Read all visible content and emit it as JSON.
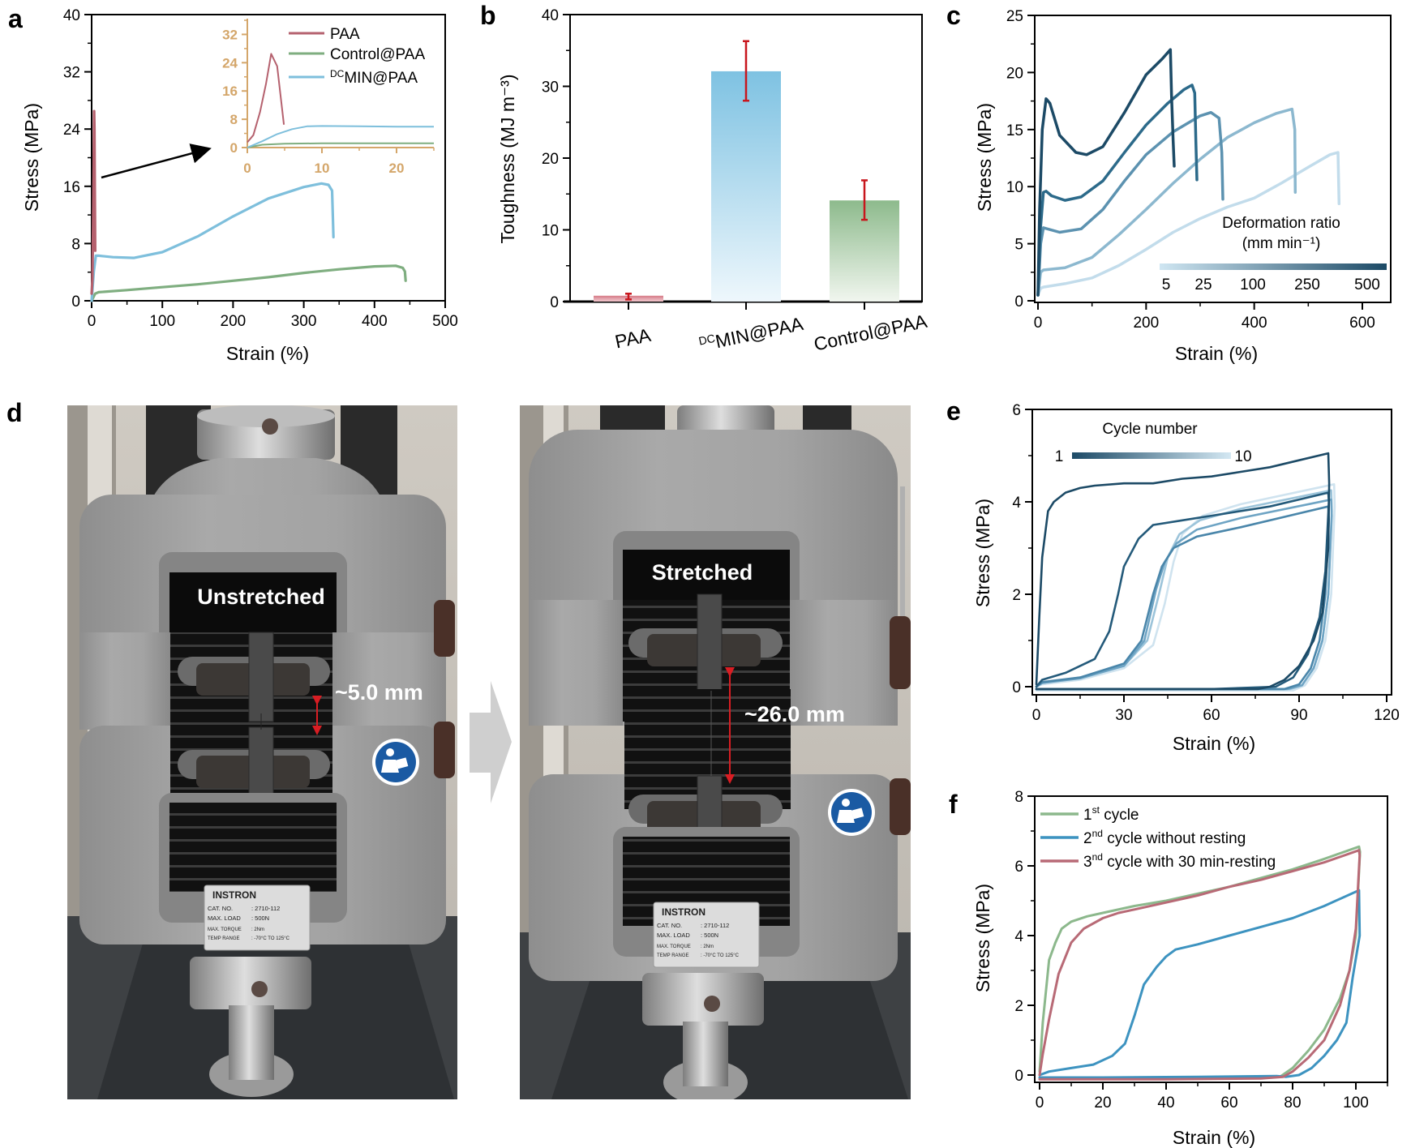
{
  "figure": {
    "panel_labels": [
      "a",
      "b",
      "c",
      "d",
      "e",
      "f"
    ]
  },
  "chart_data": [
    {
      "id": "a",
      "type": "line",
      "xlabel": "Strain (%)",
      "ylabel": "Stress (MPa)",
      "xlim": [
        0,
        500
      ],
      "ylim": [
        0,
        40
      ],
      "xticks": [
        0,
        100,
        200,
        300,
        400,
        500
      ],
      "yticks": [
        0,
        8,
        16,
        24,
        32,
        40
      ],
      "legend": [
        "PAA",
        "Control@PAA",
        "DCMIN@PAA"
      ],
      "legend_placement": "top-right (inside inset)",
      "series": [
        {
          "name": "PAA",
          "color": "#b5616e",
          "x": [
            0,
            1,
            2,
            3,
            3.5,
            4,
            4.5,
            5
          ],
          "y": [
            1,
            3,
            10,
            20,
            26.5,
            24,
            16,
            7
          ]
        },
        {
          "name": "Control@PAA",
          "color": "#7fae80",
          "x": [
            0,
            5,
            10,
            50,
            100,
            150,
            200,
            250,
            300,
            350,
            400,
            430,
            440,
            443,
            444
          ],
          "y": [
            0,
            1.0,
            1.2,
            1.5,
            1.9,
            2.3,
            2.8,
            3.3,
            3.9,
            4.4,
            4.8,
            4.9,
            4.6,
            4.1,
            2.8
          ]
        },
        {
          "name": "DCMIN@PAA",
          "color": "#7ebfdc",
          "x": [
            0,
            3,
            6,
            10,
            30,
            60,
            100,
            150,
            200,
            250,
            300,
            325,
            335,
            340,
            341,
            342
          ],
          "y": [
            0,
            4,
            6.3,
            6.3,
            6.1,
            6.0,
            6.8,
            9.0,
            11.8,
            14.3,
            15.9,
            16.4,
            16.2,
            15.4,
            12,
            8.9
          ]
        }
      ],
      "inset": {
        "xlim": [
          0,
          25
        ],
        "ylim": [
          0,
          36
        ],
        "xticks": [
          0,
          10,
          20
        ],
        "yticks": [
          0,
          8,
          16,
          24,
          32
        ],
        "axis_color": "#d4a66a",
        "series": [
          {
            "name": "PAA",
            "x": [
              0,
              0.8,
              1.7,
              2.5,
              3.2,
              4.0,
              4.9
            ],
            "y": [
              1.5,
              3.5,
              10,
              18,
              26.5,
              23,
              6.5
            ]
          },
          {
            "name": "Control@PAA",
            "x": [
              0,
              2,
              5,
              10,
              15,
              20,
              25
            ],
            "y": [
              0,
              0.8,
              1.1,
              1.2,
              1.2,
              1.2,
              1.2
            ]
          },
          {
            "name": "DCMIN@PAA",
            "x": [
              0,
              2,
              4,
              6,
              8,
              10,
              15,
              20,
              25
            ],
            "y": [
              0,
              1.8,
              3.8,
              5.2,
              6.0,
              6.1,
              6.0,
              5.9,
              5.9
            ]
          }
        ]
      },
      "annotation": "arrow pointing from PAA curve to inset"
    },
    {
      "id": "b",
      "type": "bar",
      "ylabel": "Toughness (MJ m⁻³)",
      "ylim": [
        0,
        40
      ],
      "yticks": [
        0,
        10,
        20,
        30,
        40
      ],
      "categories": [
        "PAA",
        "DCMIN@PAA",
        "Control@PAA"
      ],
      "category_prefix_superscript": [
        "",
        "DC",
        ""
      ],
      "category_display": [
        "PAA",
        "MIN@PAA",
        "Control@PAA"
      ],
      "values": [
        0.7,
        32.1,
        14.1
      ],
      "error_low": [
        0.3,
        28.0,
        11.4
      ],
      "error_high": [
        1.1,
        36.3,
        16.9
      ],
      "colors_top": [
        "#d98c98",
        "#7ec2e2",
        "#8dba8c"
      ],
      "colors_bottom": [
        "#f2c7cc",
        "#eef7fc",
        "#f1f6ef"
      ],
      "error_color": "#c8161d"
    },
    {
      "id": "c",
      "type": "line",
      "xlabel": "Strain (%)",
      "ylabel": "Stress (MPa)",
      "xlim": [
        0,
        650
      ],
      "ylim": [
        0,
        25
      ],
      "xticks": [
        0,
        200,
        400,
        600
      ],
      "yticks": [
        0,
        5,
        10,
        15,
        20,
        25
      ],
      "colorbar": {
        "title": "Deformation ratio",
        "units": "(mm min⁻¹)",
        "tick_labels": [
          "5",
          "25",
          "100",
          "250",
          "500"
        ],
        "color_low": "#cfe6f2",
        "color_high": "#1c4a66"
      },
      "series": [
        {
          "name": "500",
          "color": "#1c4a66",
          "x": [
            0,
            3,
            8,
            15,
            22,
            40,
            70,
            90,
            120,
            160,
            200,
            230,
            245,
            247,
            250,
            252
          ],
          "y": [
            0.5,
            8,
            15,
            17.7,
            17.3,
            14.5,
            13.0,
            12.8,
            13.5,
            16.5,
            19.8,
            21.2,
            22,
            18,
            14,
            11.8
          ]
        },
        {
          "name": "250",
          "color": "#2c6a8a",
          "x": [
            0,
            4,
            10,
            15,
            25,
            50,
            80,
            120,
            160,
            200,
            240,
            270,
            285,
            290,
            292,
            294
          ],
          "y": [
            0.5,
            6,
            9.5,
            9.6,
            9.2,
            8.8,
            9.1,
            10.5,
            13.0,
            15.4,
            17.3,
            18.5,
            18.9,
            18.2,
            14,
            10.6
          ]
        },
        {
          "name": "100",
          "color": "#5c92b0",
          "x": [
            0,
            5,
            10,
            40,
            80,
            120,
            160,
            200,
            250,
            300,
            320,
            335,
            340,
            342
          ],
          "y": [
            0.5,
            5,
            6.4,
            6.0,
            6.3,
            8.0,
            10.5,
            12.8,
            14.8,
            16.2,
            16.5,
            16.0,
            13,
            8.9
          ]
        },
        {
          "name": "25",
          "color": "#8cb8cf",
          "x": [
            0,
            5,
            10,
            50,
            100,
            150,
            200,
            250,
            300,
            350,
            400,
            440,
            470,
            475,
            476
          ],
          "y": [
            0.5,
            2.5,
            2.7,
            2.9,
            3.8,
            5.8,
            8.0,
            10.3,
            12.4,
            14.3,
            15.6,
            16.4,
            16.8,
            15,
            9.5
          ]
        },
        {
          "name": "5",
          "color": "#c2dceb",
          "x": [
            0,
            5,
            10,
            50,
            100,
            150,
            200,
            250,
            300,
            350,
            400,
            450,
            500,
            540,
            555,
            557
          ],
          "y": [
            0.5,
            1.1,
            1.2,
            1.5,
            2.0,
            3.1,
            4.5,
            6.0,
            7.2,
            8.2,
            9.0,
            10.3,
            11.7,
            12.8,
            13.0,
            8.5
          ]
        }
      ]
    },
    {
      "id": "e",
      "type": "line",
      "xlabel": "Strain (%)",
      "ylabel": "Stress (MPa)",
      "xlim": [
        0,
        120
      ],
      "ylim": [
        -0.2,
        6
      ],
      "xticks": [
        0,
        30,
        60,
        90,
        120
      ],
      "yticks": [
        0,
        2,
        4,
        6
      ],
      "colorbar": {
        "title": "Cycle number",
        "tick_labels": [
          "1",
          "10"
        ],
        "color_low": "#1c4a66",
        "color_high": "#d4e8f3"
      },
      "series": [
        {
          "name": "cycle 1",
          "color": "#1c4a66",
          "x": [
            0,
            1,
            2,
            4,
            6,
            10,
            15,
            20,
            30,
            40,
            50,
            60,
            70,
            80,
            90,
            100,
            100.3,
            100,
            98,
            95,
            90,
            85,
            80,
            76,
            60,
            30,
            0
          ],
          "y": [
            0.05,
            1.5,
            2.8,
            3.8,
            4.0,
            4.2,
            4.3,
            4.35,
            4.4,
            4.4,
            4.5,
            4.55,
            4.65,
            4.75,
            4.9,
            5.05,
            4.4,
            3.0,
            1.6,
            1.0,
            0.45,
            0.15,
            0.0,
            -0.05,
            -0.05,
            -0.05,
            -0.05
          ]
        },
        {
          "name": "cycle 2",
          "color": "#245a7a",
          "x": [
            0,
            2,
            10,
            20,
            25,
            28,
            30,
            35,
            40,
            50,
            60,
            80,
            100,
            100.2,
            99,
            97,
            93,
            88,
            82,
            60,
            30,
            0
          ],
          "y": [
            0,
            0.15,
            0.3,
            0.6,
            1.2,
            2.0,
            2.6,
            3.2,
            3.5,
            3.6,
            3.7,
            3.9,
            4.2,
            4.0,
            2.5,
            1.5,
            0.7,
            0.2,
            0,
            -0.05,
            -0.05,
            -0.05
          ]
        },
        {
          "name": "cycle 4",
          "color": "#4a86aa",
          "x": [
            0,
            2,
            15,
            30,
            36,
            40,
            43,
            47,
            55,
            70,
            100,
            100.2,
            99,
            97,
            94,
            90,
            85,
            60,
            0
          ],
          "y": [
            0,
            0.1,
            0.2,
            0.5,
            1.0,
            2.0,
            2.6,
            3.0,
            3.25,
            3.45,
            3.9,
            3.6,
            2.0,
            1.0,
            0.4,
            0.05,
            -0.05,
            -0.05,
            -0.05
          ]
        },
        {
          "name": "cycle 6",
          "color": "#6ea4c4",
          "x": [
            0,
            2,
            15,
            30,
            37,
            41,
            44,
            48,
            55,
            70,
            101,
            101.2,
            100,
            98,
            95,
            91,
            86,
            60,
            0
          ],
          "y": [
            0,
            0.08,
            0.18,
            0.45,
            1.0,
            2.1,
            2.7,
            3.1,
            3.4,
            3.65,
            4.05,
            3.7,
            2.0,
            1.0,
            0.4,
            0.03,
            -0.05,
            -0.05,
            -0.05
          ]
        },
        {
          "name": "cycle 8",
          "color": "#9cc4da",
          "x": [
            0,
            2,
            15,
            30,
            38,
            42,
            45,
            49,
            56,
            70,
            101,
            101.2,
            100,
            98,
            95,
            91,
            87,
            60,
            0
          ],
          "y": [
            0,
            0.08,
            0.2,
            0.45,
            1.0,
            2.0,
            2.8,
            3.3,
            3.6,
            3.85,
            4.25,
            3.8,
            2.0,
            1.0,
            0.4,
            0.03,
            -0.05,
            -0.05,
            -0.05
          ]
        },
        {
          "name": "cycle 10",
          "color": "#cfe3ef",
          "x": [
            0,
            2,
            15,
            30,
            40,
            44,
            47,
            50,
            57,
            70,
            102,
            102.2,
            101,
            99,
            96,
            92,
            88,
            60,
            0
          ],
          "y": [
            0,
            0.05,
            0.15,
            0.4,
            0.9,
            1.8,
            2.7,
            3.3,
            3.7,
            3.95,
            4.38,
            3.9,
            2.0,
            1.0,
            0.4,
            0.03,
            -0.08,
            -0.08,
            -0.08
          ]
        }
      ]
    },
    {
      "id": "f",
      "type": "line",
      "xlabel": "Strain (%)",
      "ylabel": "Stress (MPa)",
      "xlim": [
        0,
        110
      ],
      "ylim": [
        -0.2,
        8
      ],
      "xticks": [
        0,
        20,
        40,
        60,
        80,
        100
      ],
      "yticks": [
        0,
        2,
        4,
        6,
        8
      ],
      "legend_placement": "top-left",
      "series": [
        {
          "name": "1st cycle",
          "label_main": "1",
          "label_sup": "st",
          "label_rest": " cycle",
          "color": "#8cb88c",
          "x": [
            0,
            1,
            3,
            5,
            7,
            10,
            15,
            20,
            30,
            40,
            50,
            60,
            70,
            80,
            90,
            101,
            101.3,
            100,
            98,
            95,
            90,
            85,
            80,
            76,
            60,
            30,
            0
          ],
          "y": [
            0.1,
            1.5,
            3.3,
            3.8,
            4.2,
            4.4,
            4.55,
            4.65,
            4.85,
            5.0,
            5.2,
            5.4,
            5.65,
            5.9,
            6.2,
            6.55,
            6.4,
            4.0,
            3.0,
            2.2,
            1.3,
            0.7,
            0.2,
            -0.05,
            -0.08,
            -0.08,
            -0.08
          ]
        },
        {
          "name": "2nd cycle without resting",
          "label_main": "2",
          "label_sup": "nd",
          "label_rest": " cycle without resting",
          "color": "#3d93c0",
          "x": [
            0,
            3,
            10,
            17,
            23,
            27,
            30,
            33,
            37,
            40,
            43,
            50,
            60,
            70,
            80,
            90,
            101,
            101.2,
            99,
            97,
            94,
            90,
            86,
            82,
            78,
            75,
            50,
            20,
            0
          ],
          "y": [
            0,
            0.1,
            0.2,
            0.3,
            0.55,
            0.9,
            1.7,
            2.6,
            3.1,
            3.4,
            3.6,
            3.75,
            4.0,
            4.25,
            4.5,
            4.85,
            5.3,
            4.0,
            2.8,
            1.5,
            1.0,
            0.55,
            0.2,
            0.0,
            -0.05,
            -0.03,
            -0.05,
            -0.07,
            -0.07
          ]
        },
        {
          "name": "3rd cycle with 30 min-resting",
          "label_main": "3",
          "label_sup": "nd",
          "label_rest": " cycle with 30 min-resting",
          "color": "#b86a76",
          "x": [
            0,
            1,
            3,
            6,
            10,
            14,
            20,
            25,
            30,
            40,
            50,
            60,
            70,
            80,
            90,
            101,
            101.2,
            100,
            98,
            95,
            90,
            85,
            80,
            77,
            70,
            40,
            0
          ],
          "y": [
            0,
            0.6,
            1.6,
            2.9,
            3.8,
            4.2,
            4.5,
            4.65,
            4.75,
            4.95,
            5.15,
            5.4,
            5.6,
            5.85,
            6.1,
            6.45,
            6.3,
            4.2,
            3.0,
            2.0,
            1.0,
            0.5,
            0.1,
            -0.05,
            -0.1,
            -0.12,
            -0.12
          ]
        }
      ]
    }
  ],
  "panel_d": {
    "left_photo": {
      "label": "Unstretched",
      "gap_label": "~5.0 mm",
      "plate": {
        "brand": "INSTRON",
        "rows": [
          [
            "CAT. NO.",
            ": 2710-112"
          ],
          [
            "MAX. LOAD",
            ": 500N"
          ],
          [
            "MAX. TORQUE",
            ": 2Nm"
          ],
          [
            "TEMP RANGE",
            ": -70°C TO 125°C"
          ]
        ]
      }
    },
    "right_photo": {
      "label": "Stretched",
      "gap_label": "~26.0 mm",
      "plate": {
        "brand": "INSTRON",
        "rows": [
          [
            "CAT. NO.",
            ": 2710-112"
          ],
          [
            "MAX. LOAD",
            ": 500N"
          ],
          [
            "MAX. TORQUE",
            ": 2Nm"
          ],
          [
            "TEMP RANGE",
            ": -70°C TO 125°C"
          ]
        ]
      }
    },
    "transition_arrow": "right-arrow-icon",
    "safety_icon": "read-manual-icon"
  }
}
